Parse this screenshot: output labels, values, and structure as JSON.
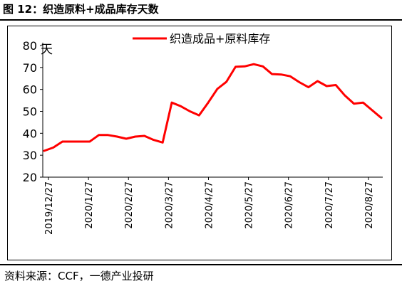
{
  "figure_title": "图 12：织造原料+成品库存天数",
  "source": "资料来源：CCF，一德产业投研",
  "colors": {
    "series": "#ff0000",
    "axis": "#000000"
  },
  "chart_data": {
    "type": "line",
    "ylabel": "天",
    "ylim": [
      20,
      80
    ],
    "yticks": [
      20,
      30,
      40,
      50,
      60,
      70,
      80
    ],
    "xlabel": "",
    "legend_position": "top",
    "grid": false,
    "x_tick_labels": [
      "2019/12/27",
      "2020/1/27",
      "2020/2/27",
      "2020/3/27",
      "2020/4/27",
      "2020/5/27",
      "2020/6/27",
      "2020/7/27",
      "2020/8/27"
    ],
    "series": [
      {
        "name": "织造成品+原料库存",
        "color": "#ff0000",
        "values": [
          32,
          33.5,
          36.2,
          36.2,
          36.2,
          36.2,
          39.2,
          39.2,
          38.5,
          37.5,
          38.5,
          38.8,
          37,
          35.8,
          54,
          52.3,
          50,
          48.2,
          54,
          60.2,
          63.5,
          70.3,
          70.5,
          71.5,
          70.5,
          67,
          66.8,
          66,
          63.3,
          61,
          63.8,
          61.5,
          62,
          57.2,
          53.5,
          54,
          50.5,
          47
        ]
      }
    ]
  }
}
